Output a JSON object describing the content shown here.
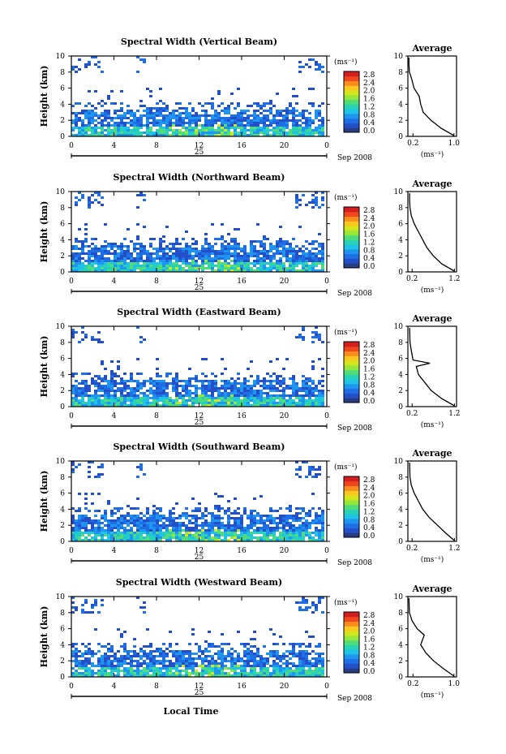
{
  "figure": {
    "xaxis_label": "Local Time",
    "date_label": "Sep 2008",
    "day_label": "25",
    "unit_label": "(ms⁻¹)",
    "average_title": "Average",
    "average_xlabel": "(ms⁻¹)",
    "ylabel": "Height (km)"
  },
  "colorbar": {
    "ticks": [
      "2.8",
      "2.4",
      "2.0",
      "1.6",
      "1.2",
      "0.8",
      "0.4",
      "0.0"
    ],
    "colors": [
      "#ffffff",
      "#283c82",
      "#2350c8",
      "#1e6ee6",
      "#1e96f0",
      "#1ec3e6",
      "#28d2b4",
      "#50dc78",
      "#96e63c",
      "#d2e61e",
      "#fac81e",
      "#fa8c1e",
      "#f0461e",
      "#d21e1e"
    ]
  },
  "chart_data": [
    {
      "type": "heatmap",
      "title": "Spectral Width (Vertical Beam)",
      "xlabel": "",
      "ylabel": "Height (km)",
      "xlim": [
        0,
        24
      ],
      "ylim": [
        0,
        10
      ],
      "xticks": [
        "0",
        "4",
        "8",
        "12",
        "16",
        "20",
        "0"
      ],
      "yticks": [
        "0",
        "2",
        "4",
        "6",
        "8",
        "10"
      ],
      "colorbar": {
        "label": "(ms⁻¹)",
        "range": [
          0.0,
          2.8
        ]
      },
      "average": {
        "title": "Average",
        "xlabel": "(ms⁻¹)",
        "xticks": [
          "0.2",
          "1.0"
        ],
        "xlim": [
          0.1,
          1.05
        ],
        "profile": [
          [
            1.0,
            0.1
          ],
          [
            0.75,
            1.0
          ],
          [
            0.55,
            2.0
          ],
          [
            0.4,
            3.0
          ],
          [
            0.35,
            4.0
          ],
          [
            0.32,
            5.0
          ],
          [
            0.22,
            6.0
          ],
          [
            0.18,
            7.0
          ],
          [
            0.13,
            8.0
          ],
          [
            0.12,
            9.0
          ],
          [
            0.12,
            9.8
          ]
        ]
      }
    },
    {
      "type": "heatmap",
      "title": "Spectral Width (Northward Beam)",
      "xlabel": "",
      "ylabel": "Height (km)",
      "xlim": [
        0,
        24
      ],
      "ylim": [
        0,
        10
      ],
      "xticks": [
        "0",
        "4",
        "8",
        "12",
        "16",
        "20",
        "0"
      ],
      "yticks": [
        "0",
        "2",
        "4",
        "6",
        "8",
        "10"
      ],
      "colorbar": {
        "label": "(ms⁻¹)",
        "range": [
          0.0,
          2.8
        ]
      },
      "average": {
        "title": "Average",
        "xlabel": "(ms⁻¹)",
        "xticks": [
          "0.2",
          "1.2"
        ],
        "xlim": [
          0.1,
          1.25
        ],
        "profile": [
          [
            1.2,
            0.1
          ],
          [
            0.9,
            1.0
          ],
          [
            0.7,
            2.0
          ],
          [
            0.55,
            3.0
          ],
          [
            0.45,
            4.0
          ],
          [
            0.35,
            5.0
          ],
          [
            0.25,
            6.0
          ],
          [
            0.18,
            7.0
          ],
          [
            0.15,
            8.0
          ],
          [
            0.14,
            9.0
          ],
          [
            0.14,
            9.8
          ]
        ]
      }
    },
    {
      "type": "heatmap",
      "title": "Spectral Width (Eastward Beam)",
      "xlabel": "",
      "ylabel": "Height (km)",
      "xlim": [
        0,
        24
      ],
      "ylim": [
        0,
        10
      ],
      "xticks": [
        "0",
        "4",
        "8",
        "12",
        "16",
        "20",
        "0"
      ],
      "yticks": [
        "0",
        "2",
        "4",
        "6",
        "8",
        "10"
      ],
      "colorbar": {
        "label": "(ms⁻¹)",
        "range": [
          0.0,
          2.8
        ]
      },
      "average": {
        "title": "Average",
        "xlabel": "(ms⁻¹)",
        "xticks": [
          "0.2",
          "1.2"
        ],
        "xlim": [
          0.1,
          1.25
        ],
        "profile": [
          [
            1.2,
            0.1
          ],
          [
            0.9,
            1.0
          ],
          [
            0.65,
            2.0
          ],
          [
            0.5,
            3.0
          ],
          [
            0.35,
            4.0
          ],
          [
            0.3,
            5.0
          ],
          [
            0.62,
            5.4
          ],
          [
            0.22,
            5.8
          ],
          [
            0.18,
            7.0
          ],
          [
            0.15,
            8.0
          ],
          [
            0.14,
            9.8
          ]
        ]
      }
    },
    {
      "type": "heatmap",
      "title": "Spectral Width (Southward Beam)",
      "xlabel": "",
      "ylabel": "Height (km)",
      "xlim": [
        0,
        24
      ],
      "ylim": [
        0,
        10
      ],
      "xticks": [
        "0",
        "4",
        "8",
        "12",
        "16",
        "20",
        "0"
      ],
      "yticks": [
        "0",
        "2",
        "4",
        "6",
        "8",
        "10"
      ],
      "colorbar": {
        "label": "(ms⁻¹)",
        "range": [
          0.0,
          2.8
        ]
      },
      "average": {
        "title": "Average",
        "xlabel": "(ms⁻¹)",
        "xticks": [
          "0.2",
          "1.2"
        ],
        "xlim": [
          0.1,
          1.25
        ],
        "profile": [
          [
            1.2,
            0.1
          ],
          [
            1.0,
            1.0
          ],
          [
            0.8,
            2.0
          ],
          [
            0.6,
            3.0
          ],
          [
            0.45,
            4.0
          ],
          [
            0.35,
            5.0
          ],
          [
            0.25,
            6.0
          ],
          [
            0.18,
            7.0
          ],
          [
            0.15,
            8.0
          ],
          [
            0.14,
            9.8
          ]
        ]
      }
    },
    {
      "type": "heatmap",
      "title": "Spectral Width (Westward Beam)",
      "xlabel": "Local Time",
      "ylabel": "Height (km)",
      "xlim": [
        0,
        24
      ],
      "ylim": [
        0,
        10
      ],
      "xticks": [
        "0",
        "4",
        "8",
        "12",
        "16",
        "20",
        "0"
      ],
      "yticks": [
        "0",
        "2",
        "4",
        "6",
        "8",
        "10"
      ],
      "colorbar": {
        "label": "(ms⁻¹)",
        "range": [
          0.0,
          2.8
        ]
      },
      "average": {
        "title": "Average",
        "xlabel": "(ms⁻¹)",
        "xticks": [
          "0.2",
          "1.0"
        ],
        "xlim": [
          0.1,
          1.05
        ],
        "profile": [
          [
            1.0,
            0.1
          ],
          [
            0.8,
            1.0
          ],
          [
            0.6,
            2.0
          ],
          [
            0.45,
            3.0
          ],
          [
            0.35,
            4.0
          ],
          [
            0.42,
            5.2
          ],
          [
            0.28,
            6.0
          ],
          [
            0.18,
            7.0
          ],
          [
            0.13,
            8.0
          ],
          [
            0.12,
            9.8
          ]
        ]
      }
    }
  ]
}
